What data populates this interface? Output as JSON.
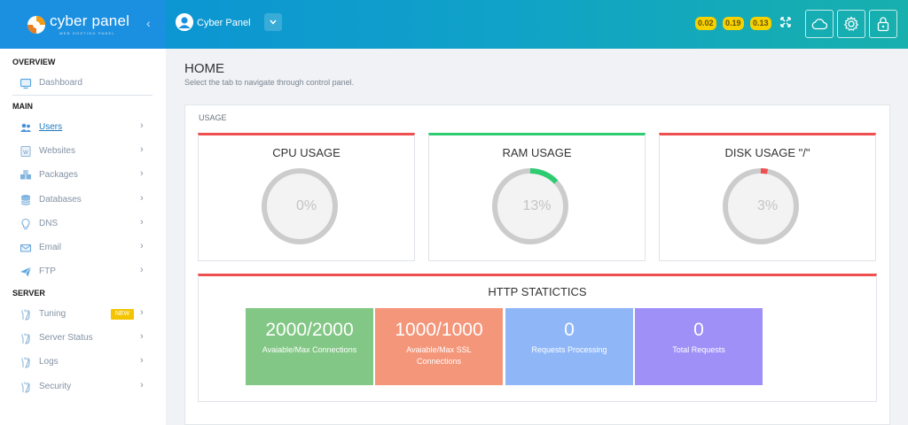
{
  "brand": {
    "name": "cyber panel",
    "tagline": "WEB HOSTING PANEL"
  },
  "header": {
    "user_name": "Cyber Panel",
    "load_avg": [
      "0.02",
      "0.19",
      "0.13"
    ]
  },
  "sidebar": {
    "overview_label": "OVERVIEW",
    "dashboard": "Dashboard",
    "main_label": "MAIN",
    "server_label": "SERVER",
    "main_items": [
      {
        "label": "Users",
        "icon": "users-icon"
      },
      {
        "label": "Websites",
        "icon": "websites-icon"
      },
      {
        "label": "Packages",
        "icon": "packages-icon"
      },
      {
        "label": "Databases",
        "icon": "database-icon"
      },
      {
        "label": "DNS",
        "icon": "bulb-icon"
      },
      {
        "label": "Email",
        "icon": "email-icon"
      },
      {
        "label": "FTP",
        "icon": "ftp-icon"
      }
    ],
    "server_items": [
      {
        "label": "Tuning",
        "icon": "tuning-icon",
        "badge": "NEW"
      },
      {
        "label": "Server Status",
        "icon": "server-status-icon"
      },
      {
        "label": "Logs",
        "icon": "logs-icon"
      },
      {
        "label": "Security",
        "icon": "security-icon"
      }
    ]
  },
  "page": {
    "title": "HOME",
    "subtitle": "Select the tab to navigate through control panel."
  },
  "usage": {
    "section_label": "USAGE",
    "cards": [
      {
        "title": "CPU USAGE",
        "percent_label": "0%",
        "percent": 0,
        "accent": "#ef4f4f"
      },
      {
        "title": "RAM USAGE",
        "percent_label": "13%",
        "percent": 13,
        "accent": "#2ecc71"
      },
      {
        "title": "DISK USAGE \"/\"",
        "percent_label": "3%",
        "percent": 3,
        "accent": "#ef4f4f"
      }
    ]
  },
  "http": {
    "title": "HTTP STATICTICS",
    "boxes": [
      {
        "value": "2000/2000",
        "label": "Avaiable/Max Connections",
        "color": "#82c785"
      },
      {
        "value": "1000/1000",
        "label": "Avaiable/Max SSL Connections",
        "color": "#f4967a"
      },
      {
        "value": "0",
        "label": "Requests Processing",
        "color": "#8fb7f8"
      },
      {
        "value": "0",
        "label": "Total Requests",
        "color": "#9f90f8"
      }
    ]
  }
}
